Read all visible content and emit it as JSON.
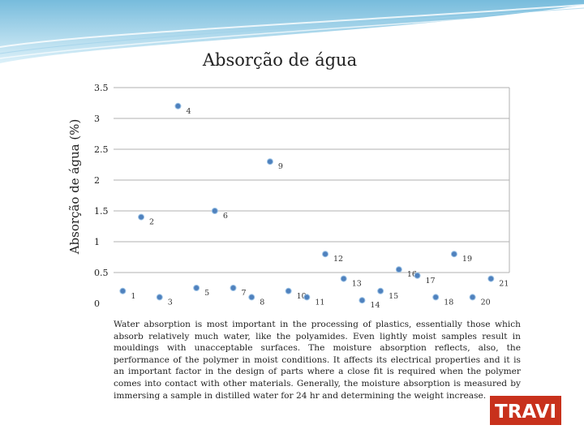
{
  "colors": {
    "accent": "#6fb8d8",
    "marker": "#4f81bd",
    "grid": "#b0b0b0",
    "logo": "#c8311c"
  },
  "chart_data": {
    "type": "scatter",
    "title": "Absorção  de água",
    "xlabel": "",
    "ylabel": "Absorção de água (%)",
    "ylim": [
      0,
      3.5
    ],
    "xlim": [
      0.5,
      22
    ],
    "yticks": [
      "0",
      "0.5",
      "1",
      "1.5",
      "2",
      "2.5",
      "3",
      "3.5"
    ],
    "grid": true,
    "points": [
      {
        "label": "1",
        "x": 1,
        "y": 0.2
      },
      {
        "label": "2",
        "x": 2,
        "y": 1.4
      },
      {
        "label": "3",
        "x": 3,
        "y": 0.1
      },
      {
        "label": "4",
        "x": 4,
        "y": 3.2
      },
      {
        "label": "5",
        "x": 5,
        "y": 0.25
      },
      {
        "label": "6",
        "x": 6,
        "y": 1.5
      },
      {
        "label": "7",
        "x": 7,
        "y": 0.25
      },
      {
        "label": "8",
        "x": 8,
        "y": 0.1
      },
      {
        "label": "9",
        "x": 9,
        "y": 2.3
      },
      {
        "label": "10",
        "x": 10,
        "y": 0.2
      },
      {
        "label": "11",
        "x": 11,
        "y": 0.1
      },
      {
        "label": "12",
        "x": 12,
        "y": 0.8
      },
      {
        "label": "13",
        "x": 13,
        "y": 0.4
      },
      {
        "label": "14",
        "x": 14,
        "y": 0.05
      },
      {
        "label": "15",
        "x": 15,
        "y": 0.2
      },
      {
        "label": "16",
        "x": 16,
        "y": 0.55
      },
      {
        "label": "17",
        "x": 17,
        "y": 0.45
      },
      {
        "label": "18",
        "x": 18,
        "y": 0.1
      },
      {
        "label": "19",
        "x": 19,
        "y": 0.8
      },
      {
        "label": "20",
        "x": 20,
        "y": 0.1
      },
      {
        "label": "21",
        "x": 21,
        "y": 0.4
      }
    ]
  },
  "note": "Water absorption is most important in the processing of plastics, essentially those which absorb relatively much water, like the polyamides. Even lightly moist samples result in mouldings with unacceptable surfaces. The moisture absorption reflects, also, the performance of the polymer in moist conditions. It affects its electrical properties and it is an important factor in the design of parts where a close fit is required when the polymer comes into contact with other materials. Generally, the moisture absorption is measured by immersing a sample in distilled water for 24 hr and determining the weight increase.",
  "logo": {
    "text": "TRAVI"
  }
}
